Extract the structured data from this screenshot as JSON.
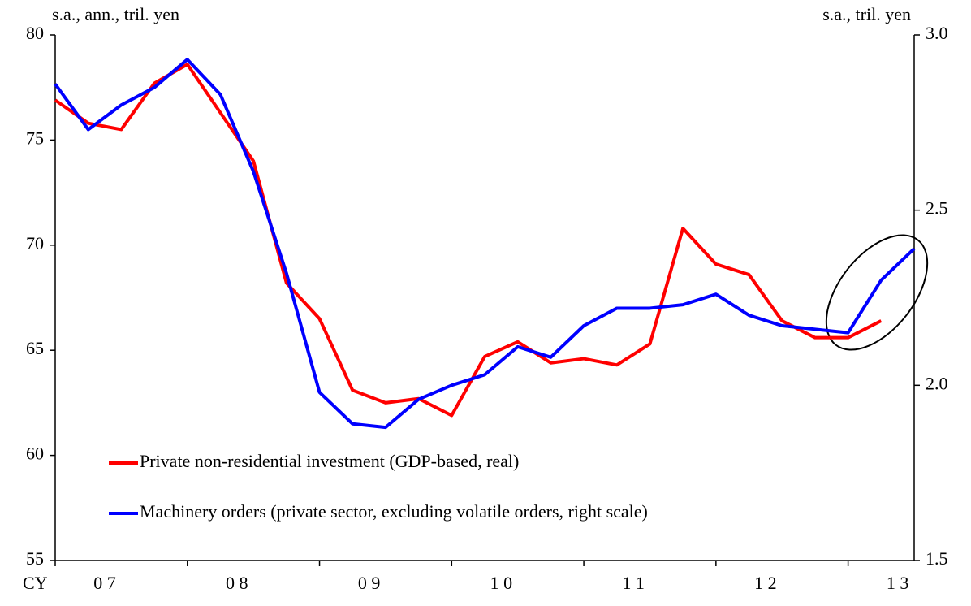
{
  "chart_data": {
    "type": "line",
    "y_label": "s.a., ann., tril. yen",
    "y2_label": "s.a., tril. yen",
    "x_prefix": "CY",
    "x_labels": [
      "0 7",
      "0 8",
      "0 9",
      "1 0",
      "1 1",
      "1 2",
      "1 3"
    ],
    "points_per_label": 4,
    "ylim": [
      55,
      80
    ],
    "yticks": [
      55,
      60,
      65,
      70,
      75,
      80
    ],
    "y2lim": [
      1.5,
      3.0
    ],
    "y2ticks": [
      {
        "value": 1.5,
        "label": "1.5"
      },
      {
        "value": 2.0,
        "label": "2.0"
      },
      {
        "value": 2.5,
        "label": "2.5"
      },
      {
        "value": 3.0,
        "label": "3.0"
      }
    ],
    "series": [
      {
        "name": "Private non-residential investment (GDP-based, real)",
        "color": "#ff0000",
        "values": [
          76.9,
          75.8,
          75.5,
          77.7,
          78.6,
          76.3,
          74.0,
          68.2,
          66.5,
          63.1,
          62.5,
          62.7,
          61.9,
          64.7,
          65.4,
          64.4,
          64.6,
          64.3,
          65.3,
          70.8,
          69.1,
          68.6,
          66.4,
          65.6,
          65.6,
          66.4,
          null
        ]
      },
      {
        "name": "Machinery orders (private sector, excluding volatile orders, right scale)",
        "color": "#0000ff",
        "axis": "y2",
        "values": [
          2.86,
          2.73,
          2.8,
          2.85,
          2.93,
          2.83,
          2.61,
          2.32,
          1.98,
          1.89,
          1.88,
          1.96,
          2.0,
          2.03,
          2.11,
          2.08,
          2.17,
          2.22,
          2.22,
          2.23,
          2.26,
          2.2,
          2.17,
          2.16,
          2.15,
          2.3,
          2.39
        ]
      }
    ]
  }
}
